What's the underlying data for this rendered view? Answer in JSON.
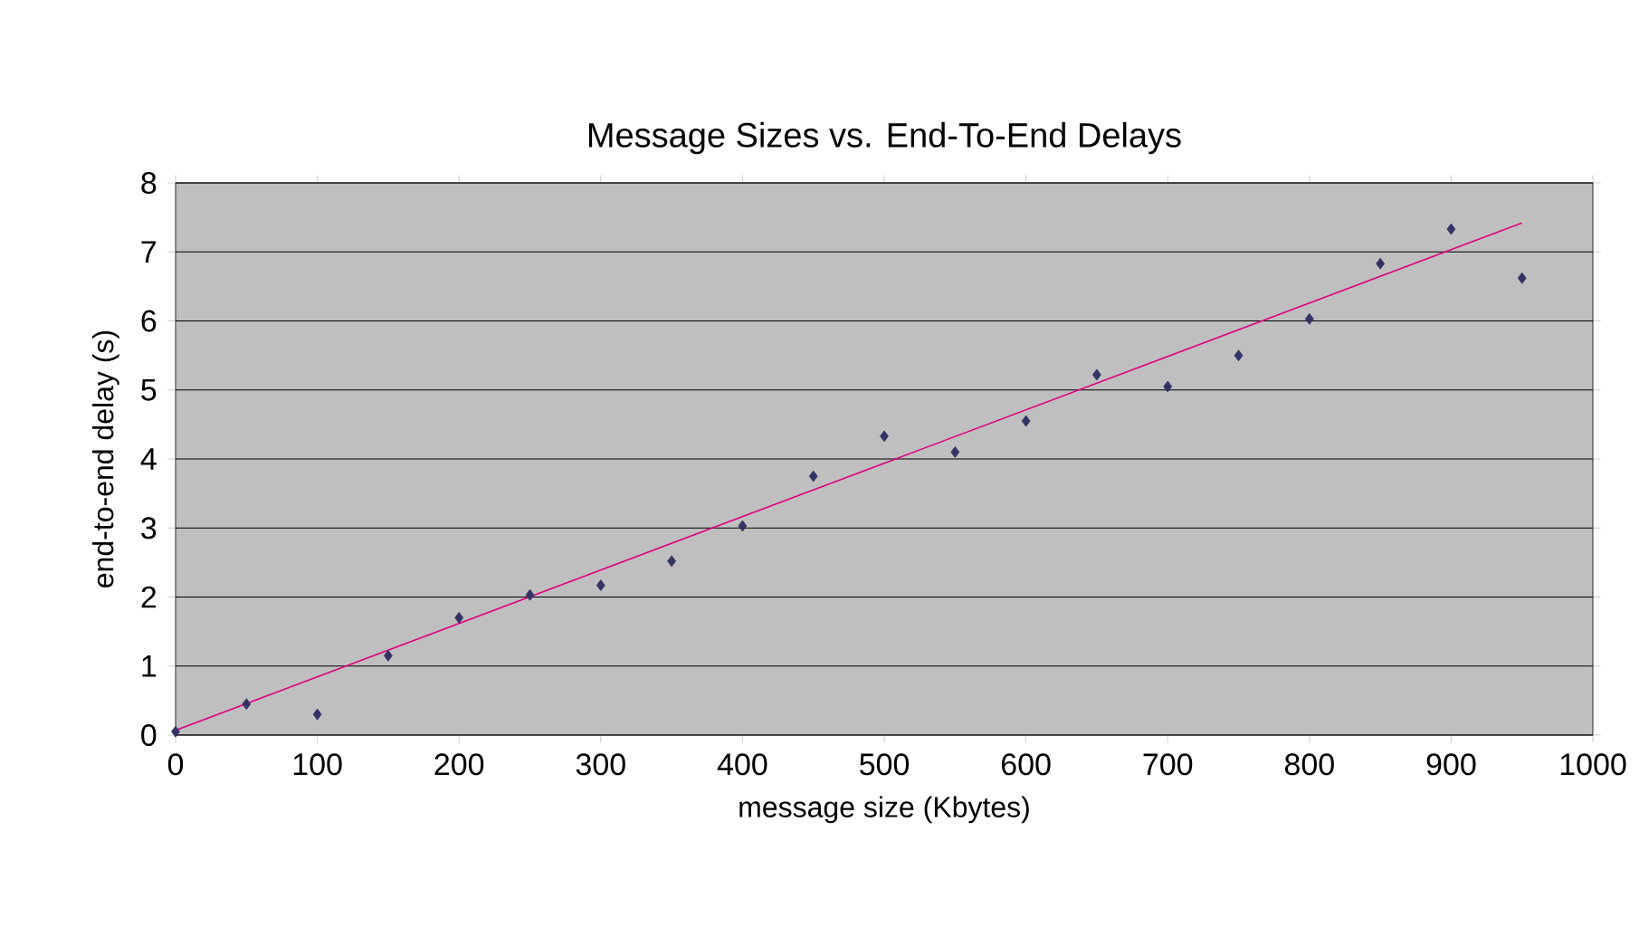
{
  "chart_data": {
    "type": "scatter",
    "title": "Message Sizes vs. End-To-End Delays",
    "xlabel": "message size (Kbytes)",
    "ylabel": "end-to-end delay (s)",
    "xlim": [
      0,
      1000
    ],
    "ylim": [
      0,
      8
    ],
    "xticks": [
      0,
      100,
      200,
      300,
      400,
      500,
      600,
      700,
      800,
      900,
      1000
    ],
    "yticks": [
      0,
      1,
      2,
      3,
      4,
      5,
      6,
      7,
      8
    ],
    "grid": "y",
    "marker": "diamond",
    "series": [
      {
        "color": "#333366",
        "x": [
          0,
          50,
          100,
          150,
          200,
          250,
          300,
          350,
          400,
          450,
          500,
          550,
          600,
          650,
          700,
          750,
          800,
          850,
          900,
          950
        ],
        "values": [
          0.05,
          0.45,
          0.3,
          1.15,
          1.7,
          2.03,
          2.17,
          2.52,
          3.03,
          3.75,
          4.33,
          4.1,
          4.55,
          5.22,
          5.05,
          5.5,
          6.03,
          6.83,
          7.33,
          6.62
        ]
      },
      {
        "type": "line",
        "color": "#e0007f",
        "marker": "none",
        "x": [
          0,
          950
        ],
        "values": [
          0.07,
          7.42
        ]
      }
    ]
  }
}
